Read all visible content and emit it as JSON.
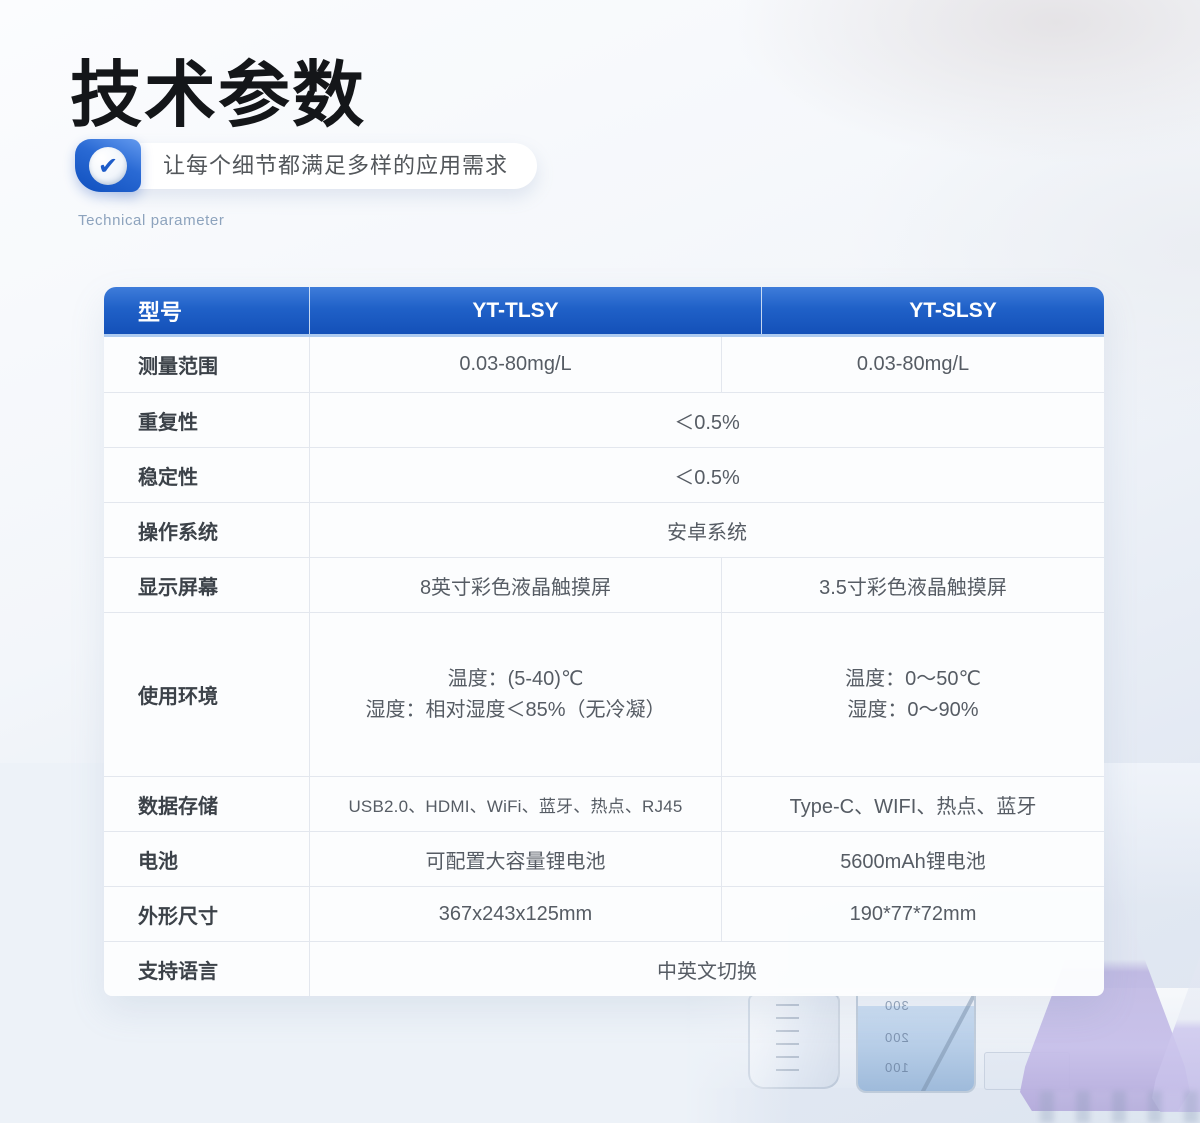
{
  "header": {
    "title": "技术参数",
    "tagline": "让每个细节都满足多样的应用需求",
    "subtitle": "Technical parameter",
    "check_glyph": "✔"
  },
  "table": {
    "columns": [
      "型号",
      "YT-TLSY",
      "YT-SLSY"
    ],
    "rows": [
      {
        "label": "测量范围",
        "cells": [
          "0.03-80mg/L",
          "0.03-80mg/L"
        ]
      },
      {
        "label": "重复性",
        "span": "＜0.5%"
      },
      {
        "label": "稳定性",
        "span": "＜0.5%"
      },
      {
        "label": "操作系统",
        "span": "安卓系统"
      },
      {
        "label": "显示屏幕",
        "cells": [
          "8英寸彩色液晶触摸屏",
          "3.5寸彩色液晶触摸屏"
        ]
      },
      {
        "label": "使用环境",
        "cells_lines": [
          [
            "温度：(5-40)℃",
            "湿度：相对湿度＜85%（无冷凝）"
          ],
          [
            "温度：0～50℃",
            "湿度：0～90%"
          ]
        ]
      },
      {
        "label": "数据存储",
        "cells": [
          "USB2.0、HDMI、WiFi、蓝牙、热点、RJ45",
          "Type-C、WIFI、热点、蓝牙"
        ]
      },
      {
        "label": "电池",
        "cells": [
          "可配置大容量锂电池",
          "5600mAh锂电池"
        ]
      },
      {
        "label": "外形尺寸",
        "cells": [
          "367x243x125mm",
          "190*77*72mm"
        ]
      },
      {
        "label": "支持语言",
        "span": "中英文切换"
      }
    ]
  },
  "decor": {
    "beaker_scale": [
      "300",
      "200",
      "100"
    ]
  },
  "colors": {
    "header_blue": "#1c59c0",
    "accent_blue": "#1e5cc9",
    "divider": "#e3e7ee",
    "subtitle_gray": "#8da3bd"
  }
}
